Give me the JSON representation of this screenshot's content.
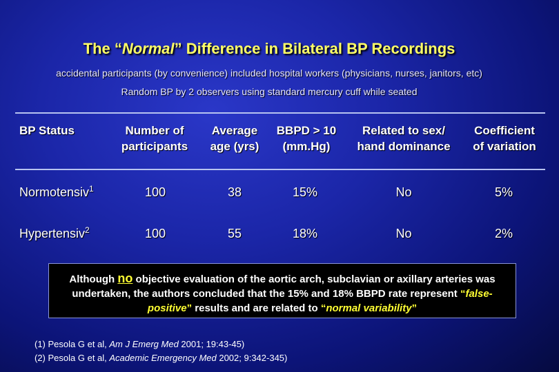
{
  "title": {
    "pre": "The “",
    "em": "Normal",
    "post": "” Difference in Bilateral BP Recordings"
  },
  "subtitle_1": "accidental participants (by convenience) included hospital workers (physicians, nurses, janitors, etc)",
  "subtitle_2": "Random BP by 2 observers using standard mercury cuff while seated",
  "table": {
    "headers": [
      "BP Status",
      "Number of participants",
      "Average age (yrs)",
      "BBPD > 10 (mm.Hg)",
      "Related to sex/ hand dominance",
      "Coefficient of variation"
    ],
    "header_lines": [
      [
        "BP Status"
      ],
      [
        "Number of",
        "participants"
      ],
      [
        "Average",
        "age (yrs)"
      ],
      [
        "BBPD > 10",
        "(mm.Hg)"
      ],
      [
        "Related to sex/",
        "hand dominance"
      ],
      [
        "Coefficient",
        "of variation"
      ]
    ],
    "rows": [
      {
        "status": "Normotensiv",
        "ref": "1",
        "number": "100",
        "age": "38",
        "bbpd": "15%",
        "related": "No",
        "cv": "5%"
      },
      {
        "status": "Hypertensiv",
        "ref": "2",
        "number": "100",
        "age": "55",
        "bbpd": "18%",
        "related": "No",
        "cv": "2%"
      }
    ]
  },
  "note": {
    "part1": "Although ",
    "no": "no",
    "part2": " objective evaluation of the aortic arch, subclavian or axillary arteries was undertaken, the authors concluded that the 15% and 18% BBPD rate represent ",
    "open_q1": "“",
    "fp": "false-positive",
    "close_q1": "”",
    "part3": " results and are related to ",
    "open_q2": "“",
    "nv": "normal variability",
    "close_q2": "”"
  },
  "references": [
    {
      "prefix": "(1) Pesola G et al, ",
      "journal": "Am J Emerg Med",
      "suffix": " 2001; 19:43-45)"
    },
    {
      "prefix": "(2) Pesola G et al, ",
      "journal": "Academic Emergency Med",
      "suffix": " 2002; 9:342-345)"
    }
  ],
  "colors": {
    "title": "#ffff66",
    "highlight": "#ffff33",
    "background": "#1b26a8"
  }
}
